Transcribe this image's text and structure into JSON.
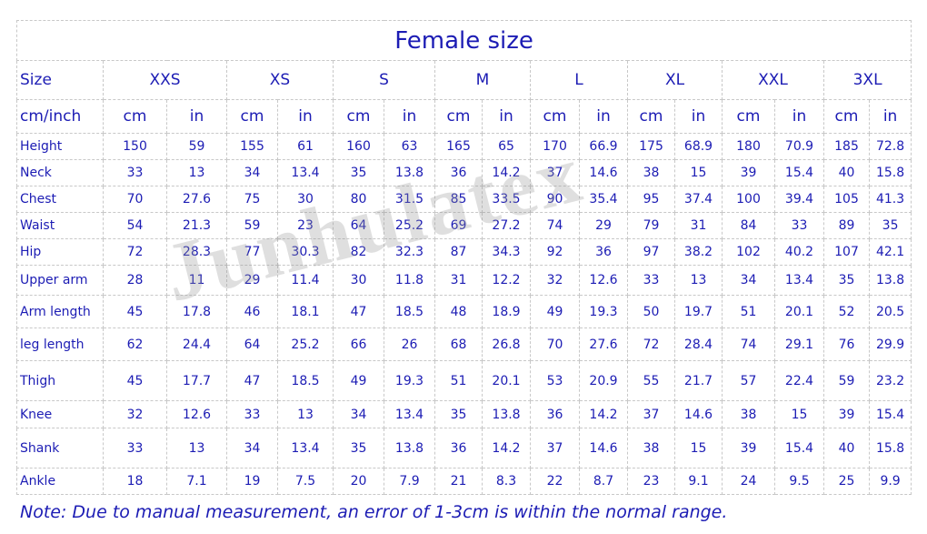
{
  "title": "Female size",
  "watermark": "Junhulatex",
  "header": [
    "Size",
    "XXS",
    "XS",
    "S",
    "M",
    "L",
    "XL",
    "XXL",
    "3XL"
  ],
  "units": [
    "cm/inch",
    "cm",
    "in",
    "cm",
    "in",
    "cm",
    "in",
    "cm",
    "in",
    "cm",
    "in",
    "cm",
    "in",
    "cm",
    "in",
    "cm",
    "in"
  ],
  "rows": [
    [
      "Height",
      "150",
      "59",
      "155",
      "61",
      "160",
      "63",
      "165",
      "65",
      "170",
      "66.9",
      "175",
      "68.9",
      "180",
      "70.9",
      "185",
      "72.8"
    ],
    [
      "Neck",
      "33",
      "13",
      "34",
      "13.4",
      "35",
      "13.8",
      "36",
      "14.2",
      "37",
      "14.6",
      "38",
      "15",
      "39",
      "15.4",
      "40",
      "15.8"
    ],
    [
      "Chest",
      "70",
      "27.6",
      "75",
      "30",
      "80",
      "31.5",
      "85",
      "33.5",
      "90",
      "35.4",
      "95",
      "37.4",
      "100",
      "39.4",
      "105",
      "41.3"
    ],
    [
      "Waist",
      "54",
      "21.3",
      "59",
      "23",
      "64",
      "25.2",
      "69",
      "27.2",
      "74",
      "29",
      "79",
      "31",
      "84",
      "33",
      "89",
      "35"
    ],
    [
      "Hip",
      "72",
      "28.3",
      "77",
      "30.3",
      "82",
      "32.3",
      "87",
      "34.3",
      "92",
      "36",
      "97",
      "38.2",
      "102",
      "40.2",
      "107",
      "42.1"
    ],
    [
      "Upper arm",
      "28",
      "11",
      "29",
      "11.4",
      "30",
      "11.8",
      "31",
      "12.2",
      "32",
      "12.6",
      "33",
      "13",
      "34",
      "13.4",
      "35",
      "13.8"
    ],
    [
      "Arm length",
      "45",
      "17.8",
      "46",
      "18.1",
      "47",
      "18.5",
      "48",
      "18.9",
      "49",
      "19.3",
      "50",
      "19.7",
      "51",
      "20.1",
      "52",
      "20.5"
    ],
    [
      "leg length",
      "62",
      "24.4",
      "64",
      "25.2",
      "66",
      "26",
      "68",
      "26.8",
      "70",
      "27.6",
      "72",
      "28.4",
      "74",
      "29.1",
      "76",
      "29.9"
    ],
    [
      "Thigh",
      "45",
      "17.7",
      "47",
      "18.5",
      "49",
      "19.3",
      "51",
      "20.1",
      "53",
      "20.9",
      "55",
      "21.7",
      "57",
      "22.4",
      "59",
      "23.2"
    ],
    [
      "Knee",
      "32",
      "12.6",
      "33",
      "13",
      "34",
      "13.4",
      "35",
      "13.8",
      "36",
      "14.2",
      "37",
      "14.6",
      "38",
      "15",
      "39",
      "15.4"
    ],
    [
      "Shank",
      "33",
      "13",
      "34",
      "13.4",
      "35",
      "13.8",
      "36",
      "14.2",
      "37",
      "14.6",
      "38",
      "15",
      "39",
      "15.4",
      "40",
      "15.8"
    ],
    [
      "Ankle",
      "18",
      "7.1",
      "19",
      "7.5",
      "20",
      "7.9",
      "21",
      "8.3",
      "22",
      "8.7",
      "23",
      "9.1",
      "24",
      "9.5",
      "25",
      "9.9"
    ]
  ],
  "note": "Note: Due to manual measurement, an error of 1-3cm is within the normal range."
}
